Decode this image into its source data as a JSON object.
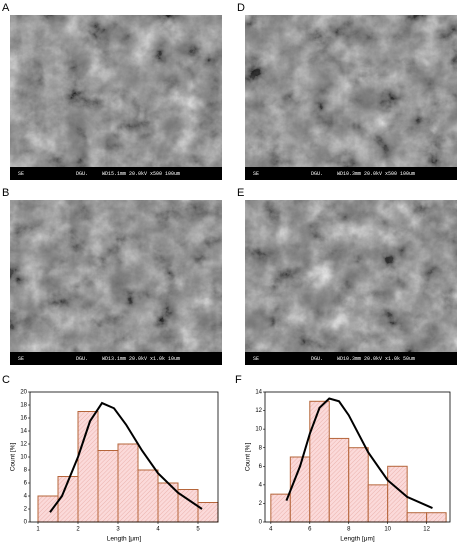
{
  "panels": [
    {
      "label": "A",
      "detector": "SE",
      "lab": "DGU.",
      "info": "WD15.1mm 20.0kV x500 100um"
    },
    {
      "label": "B",
      "detector": "SE",
      "lab": "DGU.",
      "info": "WD13.1mm 20.0kV x1.0k 10um"
    },
    {
      "label": "D",
      "detector": "SE",
      "lab": "DGU.",
      "info": "WD10.3mm 20.0kV x500 100um"
    },
    {
      "label": "E",
      "detector": "SE",
      "lab": "DGU.",
      "info": "WD10.3mm 20.0kV x1.0k 50um"
    }
  ],
  "chart_data": [
    {
      "type": "histogram",
      "label": "C",
      "xlabel": "Length [μm]",
      "ylabel": "Count [%]",
      "bins": [
        1,
        1.5,
        2,
        2.5,
        3,
        3.5,
        4,
        4.5,
        5,
        5.5
      ],
      "values": [
        4,
        7,
        17,
        11,
        12,
        8,
        6,
        5,
        3
      ],
      "color": "#b5653a",
      "fit": {
        "x": [
          1.3,
          1.6,
          2.0,
          2.3,
          2.6,
          2.9,
          3.2,
          3.6,
          4.0,
          4.5,
          5.1
        ],
        "values": [
          1.5,
          4,
          10,
          15.5,
          18.3,
          17.5,
          15,
          11,
          7.5,
          4.5,
          2
        ],
        "color": "#000000"
      },
      "xlim": [
        0.8,
        5.5
      ],
      "xticks": [
        1,
        2,
        3,
        4,
        5
      ],
      "ylim": [
        0,
        20
      ],
      "yticks": [
        0,
        2,
        4,
        6,
        8,
        10,
        12,
        14,
        16,
        18,
        20
      ]
    },
    {
      "type": "histogram",
      "label": "F",
      "xlabel": "Length [μm]",
      "ylabel": "Count [%]",
      "bins": [
        4,
        5,
        6,
        7,
        8,
        9,
        10,
        11,
        12,
        13
      ],
      "values": [
        3,
        7,
        13,
        9,
        8,
        4,
        6,
        1,
        1
      ],
      "color": "#b5653a",
      "fit": {
        "x": [
          4.8,
          5.5,
          6,
          6.5,
          7,
          7.5,
          8,
          9,
          10,
          11,
          12.3
        ],
        "values": [
          2.3,
          6,
          9.5,
          12.3,
          13.3,
          13,
          11.5,
          7.5,
          4.5,
          2.7,
          1.5
        ],
        "color": "#000000"
      },
      "xlim": [
        3.7,
        13.2
      ],
      "xticks": [
        4,
        6,
        8,
        10,
        12
      ],
      "ylim": [
        0,
        14
      ],
      "yticks": [
        0,
        2,
        4,
        6,
        8,
        10,
        12,
        14
      ]
    }
  ]
}
